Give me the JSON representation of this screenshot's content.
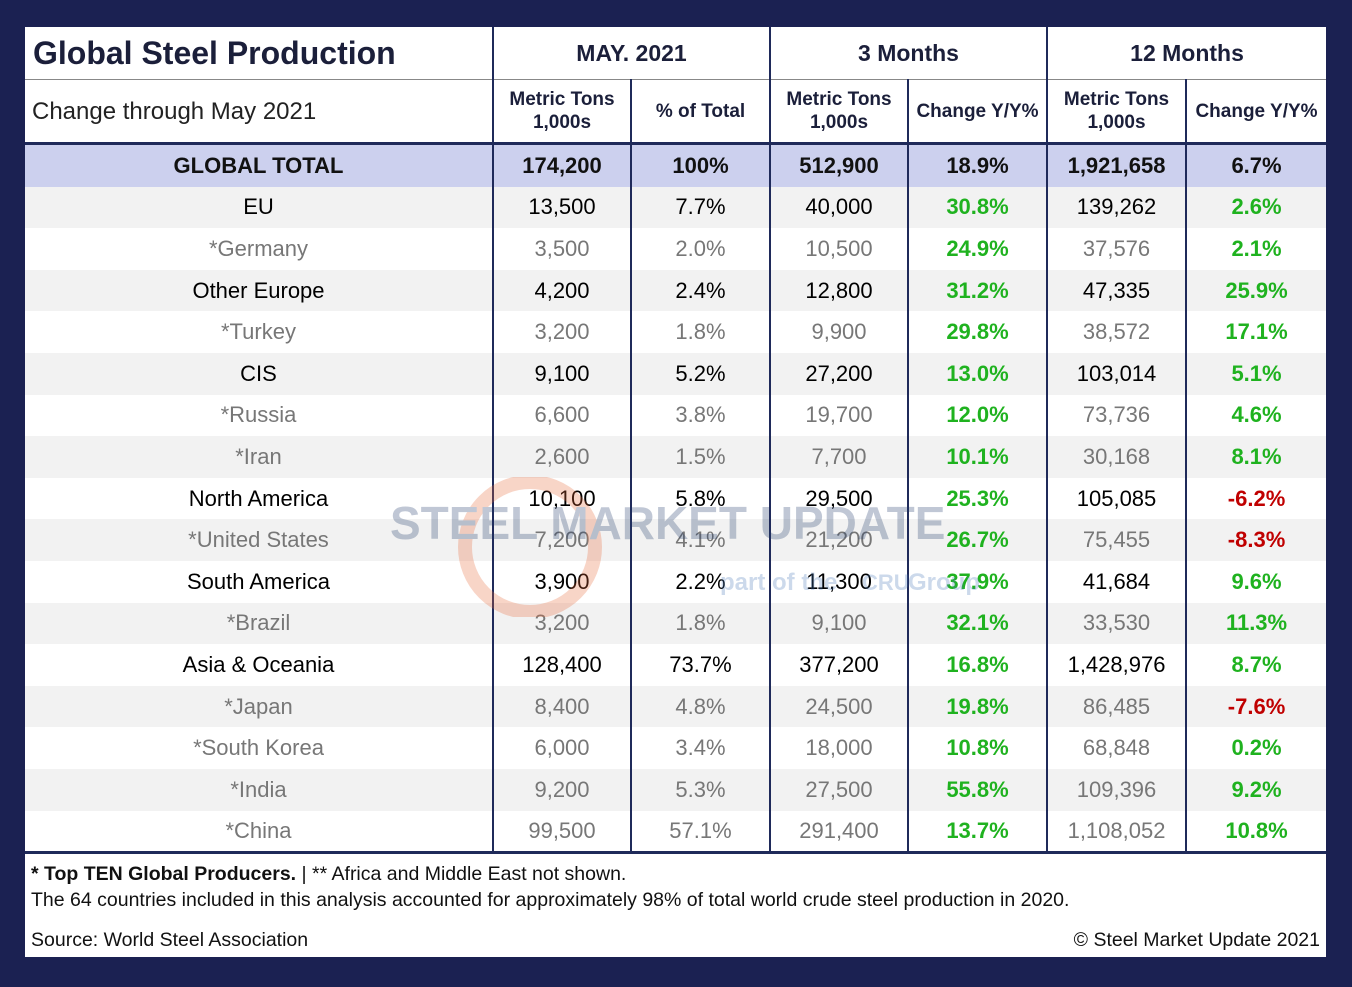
{
  "header": {
    "title": "Global Steel Production",
    "subtitle": "Change through May 2021",
    "groups": [
      "MAY. 2021",
      "3 Months",
      "12 Months"
    ],
    "columns": [
      "Metric Tons 1,000s",
      "% of Total",
      "Metric Tons 1,000s",
      "Change Y/Y%",
      "Metric Tons 1,000s",
      "Change Y/Y%"
    ]
  },
  "table": {
    "rows": [
      [
        "GLOBAL TOTAL",
        "174,200",
        "100%",
        "512,900",
        "18.9%",
        "1,921,658",
        "6.7%"
      ],
      [
        "EU",
        "13,500",
        "7.7%",
        "40,000",
        "30.8%",
        "139,262",
        "2.6%"
      ],
      [
        "*Germany",
        "3,500",
        "2.0%",
        "10,500",
        "24.9%",
        "37,576",
        "2.1%"
      ],
      [
        "Other Europe",
        "4,200",
        "2.4%",
        "12,800",
        "31.2%",
        "47,335",
        "25.9%"
      ],
      [
        "*Turkey",
        "3,200",
        "1.8%",
        "9,900",
        "29.8%",
        "38,572",
        "17.1%"
      ],
      [
        "CIS",
        "9,100",
        "5.2%",
        "27,200",
        "13.0%",
        "103,014",
        "5.1%"
      ],
      [
        "*Russia",
        "6,600",
        "3.8%",
        "19,700",
        "12.0%",
        "73,736",
        "4.6%"
      ],
      [
        "*Iran",
        "2,600",
        "1.5%",
        "7,700",
        "10.1%",
        "30,168",
        "8.1%"
      ],
      [
        "North America",
        "10,100",
        "5.8%",
        "29,500",
        "25.3%",
        "105,085",
        "-6.2%"
      ],
      [
        "*United States",
        "7,200",
        "4.1%",
        "21,200",
        "26.7%",
        "75,455",
        "-8.3%"
      ],
      [
        "South America",
        "3,900",
        "2.2%",
        "11,300",
        "37.9%",
        "41,684",
        "9.6%"
      ],
      [
        "*Brazil",
        "3,200",
        "1.8%",
        "9,100",
        "32.1%",
        "33,530",
        "11.3%"
      ],
      [
        "Asia & Oceania",
        "128,400",
        "73.7%",
        "377,200",
        "16.8%",
        "1,428,976",
        "8.7%"
      ],
      [
        "*Japan",
        "8,400",
        "4.8%",
        "24,500",
        "19.8%",
        "86,485",
        "-7.6%"
      ],
      [
        "*South Korea",
        "6,000",
        "3.4%",
        "18,000",
        "10.8%",
        "68,848",
        "0.2%"
      ],
      [
        "*India",
        "9,200",
        "5.3%",
        "27,500",
        "55.8%",
        "109,396",
        "9.2%"
      ],
      [
        "*China",
        "99,500",
        "57.1%",
        "291,400",
        "13.7%",
        "1,108,052",
        "10.8%"
      ]
    ]
  },
  "watermark": {
    "brand": "STEEL MARKET UPDATE",
    "tagline": "part of the",
    "logo": "CRU",
    "group": "Group"
  },
  "footer": {
    "note_bold": "* Top TEN Global Producers.",
    "note_rest": "| ** Africa and Middle East not shown.",
    "note_2": "The 64 countries included in this analysis accounted for approximately 98% of total world crude steel production in 2020.",
    "source": "Source: World Steel Association",
    "copyright": "© Steel Market Update 2021"
  }
}
